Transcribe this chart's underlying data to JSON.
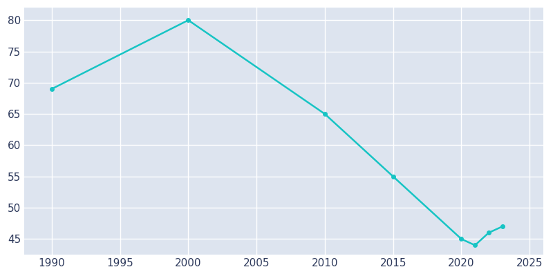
{
  "years": [
    1990,
    2000,
    2010,
    2015,
    2020,
    2021,
    2022,
    2023
  ],
  "population": [
    69,
    80,
    65,
    55,
    45,
    44,
    46,
    47
  ],
  "line_color": "#17c4c4",
  "bg_color": "#ffffff",
  "plot_bg_color": "#dde4ef",
  "grid_color": "#ffffff",
  "xlim": [
    1988,
    2026
  ],
  "ylim": [
    42.5,
    82
  ],
  "xticks": [
    1990,
    1995,
    2000,
    2005,
    2010,
    2015,
    2020,
    2025
  ],
  "yticks": [
    45,
    50,
    55,
    60,
    65,
    70,
    75,
    80
  ],
  "tick_color": "#2e3a5c",
  "line_width": 1.8,
  "marker_size": 4.0
}
